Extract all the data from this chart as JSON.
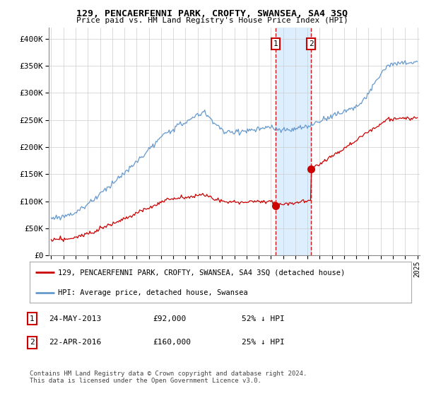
{
  "title": "129, PENCAERFENNI PARK, CROFTY, SWANSEA, SA4 3SQ",
  "subtitle": "Price paid vs. HM Land Registry's House Price Index (HPI)",
  "legend_line1": "129, PENCAERFENNI PARK, CROFTY, SWANSEA, SA4 3SQ (detached house)",
  "legend_line2": "HPI: Average price, detached house, Swansea",
  "footnote": "Contains HM Land Registry data © Crown copyright and database right 2024.\nThis data is licensed under the Open Government Licence v3.0.",
  "sale1_date": "24-MAY-2013",
  "sale1_price": "£92,000",
  "sale1_hpi": "52% ↓ HPI",
  "sale2_date": "22-APR-2016",
  "sale2_price": "£160,000",
  "sale2_hpi": "25% ↓ HPI",
  "hpi_color": "#6699cc",
  "price_color": "#cc0000",
  "highlight_color": "#ddeeff",
  "sale1_x": 2013.38,
  "sale2_x": 2016.3,
  "sale1_y": 92000,
  "sale2_y": 160000,
  "ylim": [
    0,
    420000
  ],
  "xlim": [
    1994.8,
    2025.2
  ]
}
